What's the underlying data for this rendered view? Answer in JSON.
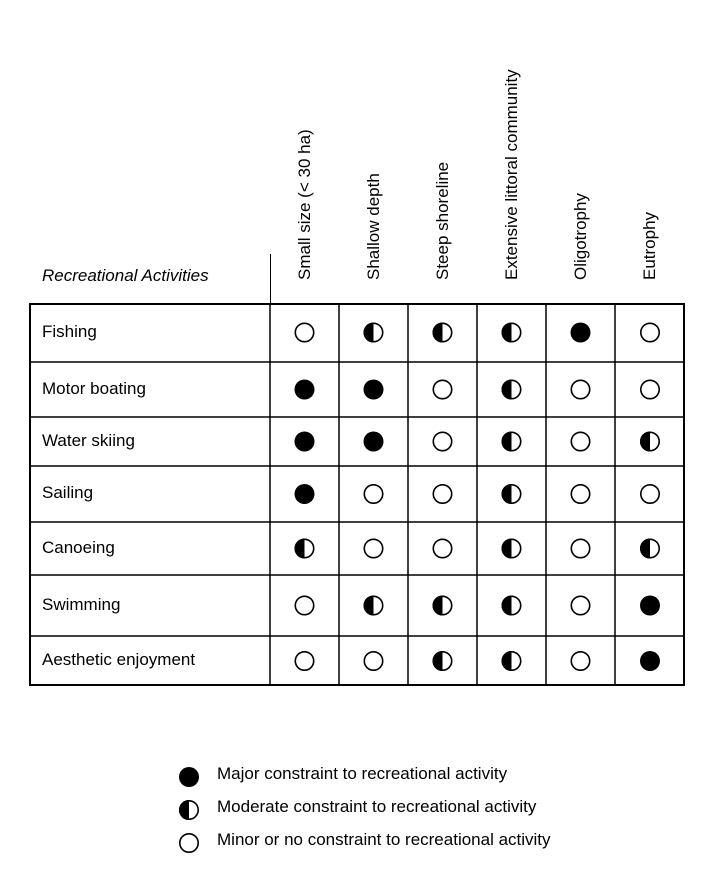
{
  "row_header_label": "Recreational Activities",
  "columns": [
    "Small size (< 30 ha)",
    "Shallow depth",
    "Steep shoreline",
    "Extensive  littoral community",
    "Oligotrophy",
    "Eutrophy"
  ],
  "rows": [
    {
      "label": "Fishing",
      "values": [
        "minor",
        "moderate",
        "moderate",
        "moderate",
        "major",
        "minor"
      ]
    },
    {
      "label": "Motor boating",
      "values": [
        "major",
        "major",
        "minor",
        "moderate",
        "minor",
        "minor"
      ]
    },
    {
      "label": "Water  skiing",
      "values": [
        "major",
        "major",
        "minor",
        "moderate",
        "minor",
        "moderate"
      ]
    },
    {
      "label": "Sailing",
      "values": [
        "major",
        "minor",
        "minor",
        "moderate",
        "minor",
        "minor"
      ]
    },
    {
      "label": "Canoeing",
      "values": [
        "moderate",
        "minor",
        "minor",
        "moderate",
        "minor",
        "moderate"
      ]
    },
    {
      "label": "Swimming",
      "values": [
        "minor",
        "moderate",
        "moderate",
        "moderate",
        "minor",
        "major"
      ]
    },
    {
      "label": "Aesthetic enjoyment",
      "values": [
        "minor",
        "minor",
        "moderate",
        "moderate",
        "minor",
        "major"
      ]
    }
  ],
  "legend": [
    {
      "symbol": "major",
      "label": "Major constraint to recreational activity"
    },
    {
      "symbol": "moderate",
      "label": "Moderate constraint to recreational activity"
    },
    {
      "symbol": "minor",
      "label": "Minor or no constraint to recreational activity"
    }
  ]
}
